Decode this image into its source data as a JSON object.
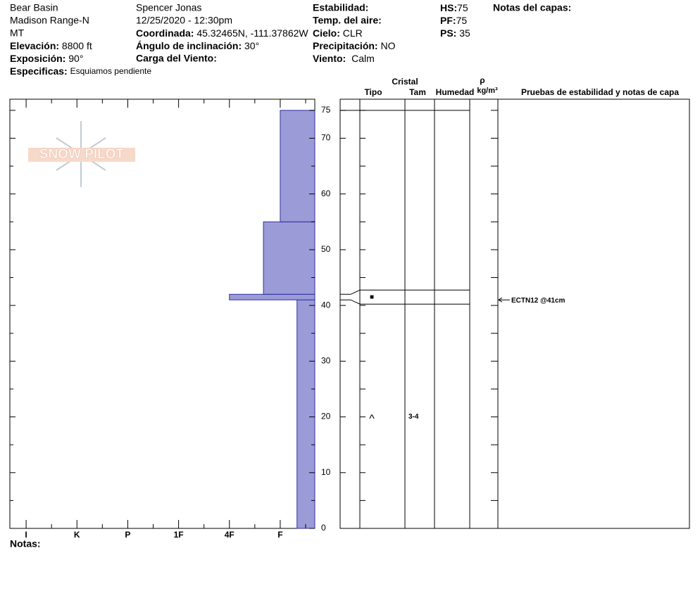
{
  "location": {
    "name": "Bear Basin",
    "range": "Madison Range-N",
    "state": "MT",
    "elevation_label": "Elevación:",
    "elevation": "8800 ft",
    "aspect_label": "Exposición:",
    "aspect": "90°",
    "specifics_label": "Especificas:",
    "specifics": "Esquiamos pendiente"
  },
  "observer": {
    "name": "Spencer Jonas",
    "datetime": "12/25/2020 - 12:30pm",
    "coord_label": "Coordinada:",
    "coord": "45.32465N, -111.37862W",
    "slope_label": "Ángulo de inclinación:",
    "slope": "30°",
    "wind_load_label": "Carga del Viento:"
  },
  "conditions": {
    "stability_label": "Estabilidad:",
    "air_temp_label": "Temp. del aire:",
    "sky_label": "Cielo:",
    "sky": "CLR",
    "precip_label": "Precipitación:",
    "precip": "NO",
    "wind_label": "Viento:",
    "wind": "Calm"
  },
  "depths": {
    "hs_label": "HS:",
    "hs": 75,
    "pf_label": "PF:",
    "pf": 75,
    "ps_label": "PS:",
    "ps": 35
  },
  "layer_notes_label": "Notas del capas:",
  "logo": "SNOW PILOT",
  "profile": {
    "depth_lim": [
      0,
      77
    ],
    "depth_ticks": [
      0,
      10,
      20,
      30,
      40,
      50,
      60,
      70,
      75
    ],
    "depth_minor_ticks": [
      5,
      15,
      25,
      35,
      45,
      55,
      65
    ],
    "hardness_lim": [
      6.32,
      0.32
    ],
    "hardness_ticks": [
      {
        "value": 6,
        "label": "I"
      },
      {
        "value": 5,
        "label": "K"
      },
      {
        "value": 4,
        "label": "P"
      },
      {
        "value": 3,
        "label": "1F"
      },
      {
        "value": 2,
        "label": "4F"
      },
      {
        "value": 1,
        "label": "F"
      }
    ],
    "hardness_minor_ticks": [
      5.5,
      4.5,
      3.5,
      2.5,
      1.5,
      0.5
    ],
    "color": "#9b9bd7",
    "layers": [
      {
        "top": 41,
        "bottom": 0,
        "hardness": 0.67
      },
      {
        "top": 42,
        "bottom": 41,
        "hardness": 2
      },
      {
        "top": 55,
        "bottom": 42,
        "hardness": 1.33
      },
      {
        "top": 75,
        "bottom": 55,
        "hardness": 1
      }
    ]
  },
  "table": {
    "crystal_header": "Cristal",
    "type_header": "Tipo",
    "size_header": "Tam",
    "moisture_header": "Humedad",
    "density_symbol": "ρ",
    "density_unit": "kg/m³",
    "tests_header": "Pruebas de estabilidad y notas de capa"
  },
  "crystals": [
    {
      "depth": 20,
      "symbol": "^",
      "size": "3-4"
    },
    {
      "depth": 41.5,
      "symbol": "■"
    }
  ],
  "tests": [
    {
      "depth": 41,
      "label": "ECTN12 @41cm"
    }
  ],
  "notes_label": "Notas:"
}
